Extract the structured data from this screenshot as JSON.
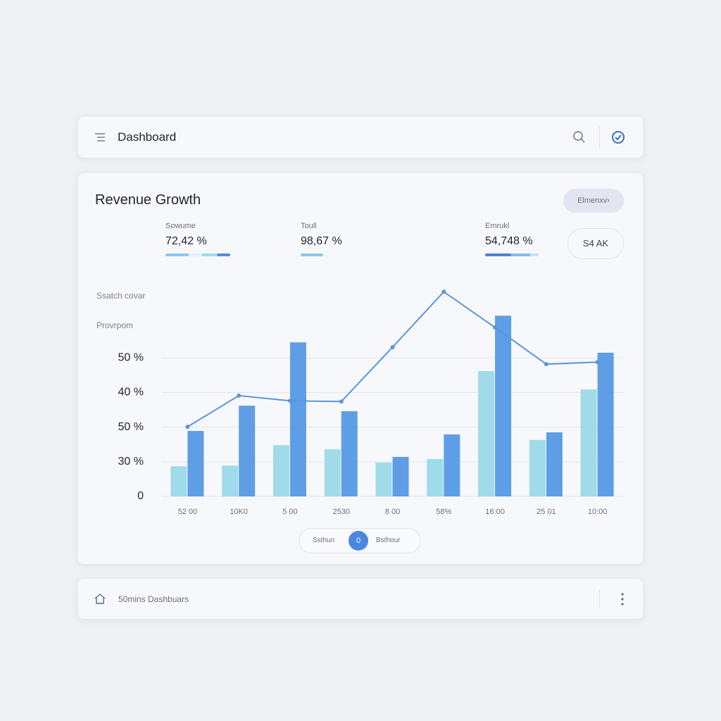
{
  "header": {
    "title": "Dashboard"
  },
  "card": {
    "title": "Revenue Growth",
    "button": "Elmenxv›",
    "stats": [
      {
        "label": "Sowume",
        "value": "72,42 %"
      },
      {
        "label": "Toull",
        "value": "98,67 %"
      },
      {
        "label": "Emrukl",
        "value": "54,748 %"
      }
    ],
    "side_button": "S4 AK"
  },
  "chart_data": {
    "type": "bar",
    "axis_labels": [
      "Ssatch covar",
      "Provrpom"
    ],
    "categories": [
      "52 00",
      "10K0",
      "5 00",
      "2530",
      "8 00",
      "58%",
      "16:00",
      "25 01",
      "10:00"
    ],
    "series": [
      {
        "color": "#9fdbe8",
        "values": [
          8.7,
          8.9,
          14.8,
          13.6,
          9.8,
          10.8,
          36.2,
          16.3,
          30.9
        ]
      },
      {
        "color": "#5d9ee6",
        "values": [
          18.9,
          26.2,
          44.5,
          24.6,
          11.4,
          17.9,
          52.2,
          18.5,
          41.5
        ]
      },
      {
        "type": "line",
        "color": "#5b95db",
        "values": [
          20.1,
          29.1,
          27.6,
          27.4,
          43.1,
          59.1,
          48.8,
          38.2,
          38.8
        ]
      }
    ],
    "ylim": [
      0,
      60
    ],
    "yticks": [
      0,
      {
        "value": 10,
        "label": "30 %"
      },
      {
        "value": 20,
        "label": "50 %"
      },
      {
        "value": 30,
        "label": "40 %"
      },
      {
        "value": 40,
        "label": "50 %"
      }
    ],
    "grid": true
  },
  "toggle": {
    "left": "Ssthun",
    "knob": "0",
    "right": "Bsthour"
  },
  "footer": {
    "text": "50mins Dashbuars"
  }
}
